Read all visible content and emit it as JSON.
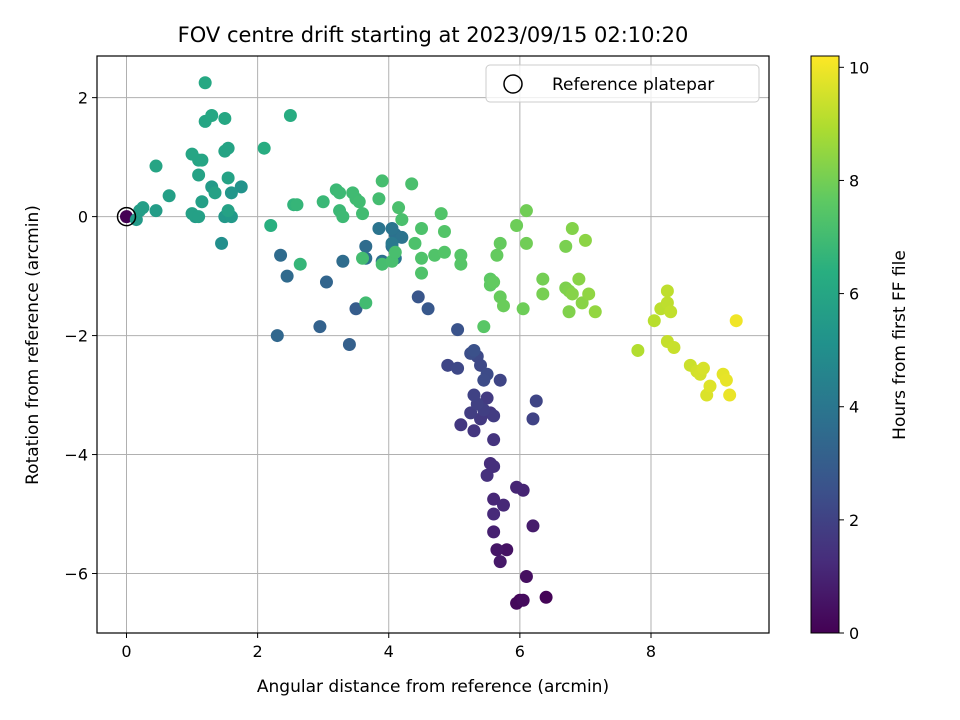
{
  "chart_data": {
    "type": "scatter",
    "title": "FOV centre drift starting at 2023/09/15 02:10:20",
    "xlabel": "Angular distance from reference (arcmin)",
    "ylabel": "Rotation from reference (arcmin)",
    "xlim": [
      -0.45,
      9.8
    ],
    "ylim": [
      -7.0,
      2.7
    ],
    "xticks": [
      0,
      2,
      4,
      6,
      8
    ],
    "yticks": [
      -6,
      -4,
      -2,
      0,
      2
    ],
    "grid": true,
    "colormap": "viridis",
    "colorbar": {
      "label": "Hours from first FF file",
      "range": [
        0,
        10.2
      ],
      "ticks": [
        0,
        2,
        4,
        6,
        8,
        10
      ]
    },
    "legend": {
      "placement": "top-right",
      "entries": [
        "Reference platepar"
      ]
    },
    "reference_point": {
      "x": 0,
      "y": 0
    },
    "points": [
      {
        "x": 0.0,
        "y": 0.0,
        "c": 0.0
      },
      {
        "x": 6.4,
        "y": -6.4,
        "c": 0.1
      },
      {
        "x": 6.0,
        "y": -6.45,
        "c": 0.15
      },
      {
        "x": 5.95,
        "y": -6.5,
        "c": 0.2
      },
      {
        "x": 6.05,
        "y": -6.45,
        "c": 0.3
      },
      {
        "x": 6.1,
        "y": -6.05,
        "c": 0.4
      },
      {
        "x": 5.8,
        "y": -5.6,
        "c": 0.5
      },
      {
        "x": 5.65,
        "y": -5.6,
        "c": 0.6
      },
      {
        "x": 5.7,
        "y": -5.8,
        "c": 0.7
      },
      {
        "x": 6.2,
        "y": -5.2,
        "c": 0.8
      },
      {
        "x": 5.6,
        "y": -5.3,
        "c": 0.9
      },
      {
        "x": 6.05,
        "y": -4.6,
        "c": 1.0
      },
      {
        "x": 5.95,
        "y": -4.55,
        "c": 1.05
      },
      {
        "x": 5.6,
        "y": -4.75,
        "c": 1.1
      },
      {
        "x": 5.75,
        "y": -4.85,
        "c": 1.15
      },
      {
        "x": 5.6,
        "y": -5.0,
        "c": 1.2
      },
      {
        "x": 5.55,
        "y": -4.15,
        "c": 1.3
      },
      {
        "x": 5.6,
        "y": -4.2,
        "c": 1.35
      },
      {
        "x": 5.5,
        "y": -4.35,
        "c": 1.4
      },
      {
        "x": 5.6,
        "y": -3.75,
        "c": 1.5
      },
      {
        "x": 5.55,
        "y": -3.3,
        "c": 1.55
      },
      {
        "x": 5.3,
        "y": -3.6,
        "c": 1.6
      },
      {
        "x": 5.1,
        "y": -3.5,
        "c": 1.65
      },
      {
        "x": 5.4,
        "y": -3.4,
        "c": 1.7
      },
      {
        "x": 5.5,
        "y": -3.05,
        "c": 1.75
      },
      {
        "x": 5.6,
        "y": -3.35,
        "c": 1.8
      },
      {
        "x": 5.25,
        "y": -3.3,
        "c": 1.85
      },
      {
        "x": 5.45,
        "y": -3.25,
        "c": 1.9
      },
      {
        "x": 5.35,
        "y": -3.15,
        "c": 1.95
      },
      {
        "x": 5.3,
        "y": -3.0,
        "c": 2.0
      },
      {
        "x": 6.2,
        "y": -3.4,
        "c": 2.05
      },
      {
        "x": 6.25,
        "y": -3.1,
        "c": 2.1
      },
      {
        "x": 5.7,
        "y": -2.75,
        "c": 2.1
      },
      {
        "x": 4.9,
        "y": -2.5,
        "c": 2.15
      },
      {
        "x": 5.05,
        "y": -2.55,
        "c": 2.2
      },
      {
        "x": 5.35,
        "y": -2.35,
        "c": 2.25
      },
      {
        "x": 5.4,
        "y": -2.5,
        "c": 2.25
      },
      {
        "x": 5.5,
        "y": -2.65,
        "c": 2.3
      },
      {
        "x": 5.45,
        "y": -2.75,
        "c": 2.35
      },
      {
        "x": 5.25,
        "y": -2.3,
        "c": 2.4
      },
      {
        "x": 5.3,
        "y": -2.25,
        "c": 2.5
      },
      {
        "x": 5.05,
        "y": -1.9,
        "c": 2.6
      },
      {
        "x": 4.45,
        "y": -1.35,
        "c": 2.7
      },
      {
        "x": 4.6,
        "y": -1.55,
        "c": 2.8
      },
      {
        "x": 3.5,
        "y": -1.55,
        "c": 3.0
      },
      {
        "x": 3.4,
        "y": -2.15,
        "c": 3.1
      },
      {
        "x": 2.95,
        "y": -1.85,
        "c": 3.2
      },
      {
        "x": 3.05,
        "y": -1.1,
        "c": 3.3
      },
      {
        "x": 2.3,
        "y": -2.0,
        "c": 3.4
      },
      {
        "x": 2.45,
        "y": -1.0,
        "c": 3.5
      },
      {
        "x": 2.35,
        "y": -0.65,
        "c": 3.55
      },
      {
        "x": 3.3,
        "y": -0.75,
        "c": 3.6
      },
      {
        "x": 3.65,
        "y": -0.5,
        "c": 3.6
      },
      {
        "x": 3.65,
        "y": -0.7,
        "c": 3.7
      },
      {
        "x": 3.9,
        "y": -0.75,
        "c": 3.75
      },
      {
        "x": 4.05,
        "y": -0.5,
        "c": 3.8
      },
      {
        "x": 4.1,
        "y": -0.3,
        "c": 3.8
      },
      {
        "x": 4.2,
        "y": -0.35,
        "c": 3.85
      },
      {
        "x": 4.05,
        "y": -0.2,
        "c": 3.9
      },
      {
        "x": 3.85,
        "y": -0.2,
        "c": 3.9
      },
      {
        "x": 4.1,
        "y": -0.7,
        "c": 4.0
      },
      {
        "x": 4.05,
        "y": -0.45,
        "c": 4.1
      },
      {
        "x": 1.45,
        "y": -0.45,
        "c": 5.0
      },
      {
        "x": 1.75,
        "y": 0.5,
        "c": 5.2
      },
      {
        "x": 1.6,
        "y": 0.4,
        "c": 5.3
      },
      {
        "x": 1.5,
        "y": 0.0,
        "c": 5.4
      },
      {
        "x": 1.6,
        "y": 0.0,
        "c": 5.45
      },
      {
        "x": 1.3,
        "y": 0.5,
        "c": 5.5
      },
      {
        "x": 1.05,
        "y": 0.0,
        "c": 5.5
      },
      {
        "x": 0.15,
        "y": -0.05,
        "c": 5.5
      },
      {
        "x": 0.2,
        "y": 0.1,
        "c": 5.6
      },
      {
        "x": 0.45,
        "y": 0.1,
        "c": 5.6
      },
      {
        "x": 0.25,
        "y": 0.15,
        "c": 5.65
      },
      {
        "x": 0.65,
        "y": 0.35,
        "c": 5.7
      },
      {
        "x": 1.15,
        "y": 0.25,
        "c": 5.7
      },
      {
        "x": 1.0,
        "y": 0.05,
        "c": 5.75
      },
      {
        "x": 1.1,
        "y": 0.0,
        "c": 5.75
      },
      {
        "x": 1.35,
        "y": 0.4,
        "c": 5.8
      },
      {
        "x": 1.55,
        "y": 0.1,
        "c": 5.8
      },
      {
        "x": 1.1,
        "y": 0.7,
        "c": 5.85
      },
      {
        "x": 1.55,
        "y": 0.65,
        "c": 5.85
      },
      {
        "x": 1.5,
        "y": 1.1,
        "c": 5.9
      },
      {
        "x": 1.55,
        "y": 1.15,
        "c": 5.9
      },
      {
        "x": 1.1,
        "y": 0.95,
        "c": 5.95
      },
      {
        "x": 0.45,
        "y": 0.85,
        "c": 5.95
      },
      {
        "x": 1.0,
        "y": 1.05,
        "c": 6.0
      },
      {
        "x": 1.15,
        "y": 0.95,
        "c": 6.0
      },
      {
        "x": 1.2,
        "y": 1.6,
        "c": 6.0
      },
      {
        "x": 1.3,
        "y": 1.7,
        "c": 6.05
      },
      {
        "x": 1.5,
        "y": 1.65,
        "c": 6.05
      },
      {
        "x": 1.2,
        "y": 2.25,
        "c": 6.1
      },
      {
        "x": 2.1,
        "y": 1.15,
        "c": 6.3
      },
      {
        "x": 2.5,
        "y": 1.7,
        "c": 6.3
      },
      {
        "x": 2.2,
        "y": -0.15,
        "c": 6.4
      },
      {
        "x": 2.55,
        "y": 0.2,
        "c": 6.6
      },
      {
        "x": 2.6,
        "y": 0.2,
        "c": 6.7
      },
      {
        "x": 2.65,
        "y": -0.8,
        "c": 6.7
      },
      {
        "x": 3.0,
        "y": 0.25,
        "c": 6.8
      },
      {
        "x": 3.2,
        "y": 0.45,
        "c": 6.85
      },
      {
        "x": 3.25,
        "y": 0.1,
        "c": 6.85
      },
      {
        "x": 3.25,
        "y": 0.4,
        "c": 6.9
      },
      {
        "x": 3.3,
        "y": 0.0,
        "c": 6.9
      },
      {
        "x": 3.45,
        "y": 0.4,
        "c": 6.95
      },
      {
        "x": 3.5,
        "y": 0.3,
        "c": 6.95
      },
      {
        "x": 3.55,
        "y": 0.25,
        "c": 7.0
      },
      {
        "x": 3.65,
        "y": -1.45,
        "c": 7.0
      },
      {
        "x": 3.6,
        "y": 0.05,
        "c": 7.0
      },
      {
        "x": 3.6,
        "y": -0.7,
        "c": 7.05
      },
      {
        "x": 3.85,
        "y": 0.3,
        "c": 7.05
      },
      {
        "x": 3.9,
        "y": 0.6,
        "c": 7.1
      },
      {
        "x": 3.9,
        "y": -0.8,
        "c": 7.1
      },
      {
        "x": 4.05,
        "y": -0.75,
        "c": 7.15
      },
      {
        "x": 4.1,
        "y": -0.6,
        "c": 7.15
      },
      {
        "x": 4.15,
        "y": 0.15,
        "c": 7.2
      },
      {
        "x": 4.2,
        "y": -0.05,
        "c": 7.2
      },
      {
        "x": 4.35,
        "y": 0.55,
        "c": 7.2
      },
      {
        "x": 4.4,
        "y": -0.45,
        "c": 7.25
      },
      {
        "x": 4.5,
        "y": -0.2,
        "c": 7.25
      },
      {
        "x": 4.5,
        "y": -0.7,
        "c": 7.3
      },
      {
        "x": 4.5,
        "y": -0.95,
        "c": 7.3
      },
      {
        "x": 4.7,
        "y": -0.65,
        "c": 7.35
      },
      {
        "x": 4.8,
        "y": 0.05,
        "c": 7.35
      },
      {
        "x": 4.85,
        "y": -0.25,
        "c": 7.4
      },
      {
        "x": 4.85,
        "y": -0.6,
        "c": 7.4
      },
      {
        "x": 5.1,
        "y": -0.65,
        "c": 7.45
      },
      {
        "x": 5.1,
        "y": -0.8,
        "c": 7.45
      },
      {
        "x": 5.45,
        "y": -1.85,
        "c": 7.5
      },
      {
        "x": 5.55,
        "y": -1.05,
        "c": 7.6
      },
      {
        "x": 5.55,
        "y": -1.15,
        "c": 7.65
      },
      {
        "x": 5.6,
        "y": -1.1,
        "c": 7.7
      },
      {
        "x": 5.65,
        "y": -0.65,
        "c": 7.75
      },
      {
        "x": 5.7,
        "y": -0.45,
        "c": 7.75
      },
      {
        "x": 5.7,
        "y": -1.35,
        "c": 7.8
      },
      {
        "x": 5.75,
        "y": -1.5,
        "c": 7.85
      },
      {
        "x": 5.95,
        "y": -0.15,
        "c": 7.9
      },
      {
        "x": 6.05,
        "y": -1.55,
        "c": 7.9
      },
      {
        "x": 6.1,
        "y": -0.45,
        "c": 7.95
      },
      {
        "x": 6.1,
        "y": 0.1,
        "c": 7.95
      },
      {
        "x": 6.35,
        "y": -1.05,
        "c": 8.0
      },
      {
        "x": 6.35,
        "y": -1.3,
        "c": 8.05
      },
      {
        "x": 6.7,
        "y": -0.5,
        "c": 8.1
      },
      {
        "x": 6.7,
        "y": -1.2,
        "c": 8.15
      },
      {
        "x": 6.75,
        "y": -1.25,
        "c": 8.2
      },
      {
        "x": 6.75,
        "y": -1.6,
        "c": 8.2
      },
      {
        "x": 6.8,
        "y": -0.2,
        "c": 8.25
      },
      {
        "x": 6.8,
        "y": -1.3,
        "c": 8.3
      },
      {
        "x": 6.9,
        "y": -1.05,
        "c": 8.35
      },
      {
        "x": 6.95,
        "y": -1.45,
        "c": 8.35
      },
      {
        "x": 7.0,
        "y": -0.4,
        "c": 8.4
      },
      {
        "x": 7.05,
        "y": -1.3,
        "c": 8.45
      },
      {
        "x": 7.15,
        "y": -1.6,
        "c": 8.5
      },
      {
        "x": 7.8,
        "y": -2.25,
        "c": 9.0
      },
      {
        "x": 8.05,
        "y": -1.75,
        "c": 9.1
      },
      {
        "x": 8.15,
        "y": -1.55,
        "c": 9.15
      },
      {
        "x": 8.25,
        "y": -1.45,
        "c": 9.2
      },
      {
        "x": 8.25,
        "y": -1.25,
        "c": 9.2
      },
      {
        "x": 8.3,
        "y": -1.6,
        "c": 9.25
      },
      {
        "x": 8.25,
        "y": -2.1,
        "c": 9.3
      },
      {
        "x": 8.35,
        "y": -2.2,
        "c": 9.35
      },
      {
        "x": 8.6,
        "y": -2.5,
        "c": 9.4
      },
      {
        "x": 8.7,
        "y": -2.6,
        "c": 9.5
      },
      {
        "x": 8.75,
        "y": -2.65,
        "c": 9.55
      },
      {
        "x": 8.8,
        "y": -2.55,
        "c": 9.6
      },
      {
        "x": 8.85,
        "y": -3.0,
        "c": 9.65
      },
      {
        "x": 8.9,
        "y": -2.85,
        "c": 9.7
      },
      {
        "x": 9.1,
        "y": -2.65,
        "c": 9.8
      },
      {
        "x": 9.15,
        "y": -2.75,
        "c": 9.85
      },
      {
        "x": 9.2,
        "y": -3.0,
        "c": 9.9
      },
      {
        "x": 9.3,
        "y": -1.75,
        "c": 10.0
      }
    ]
  }
}
